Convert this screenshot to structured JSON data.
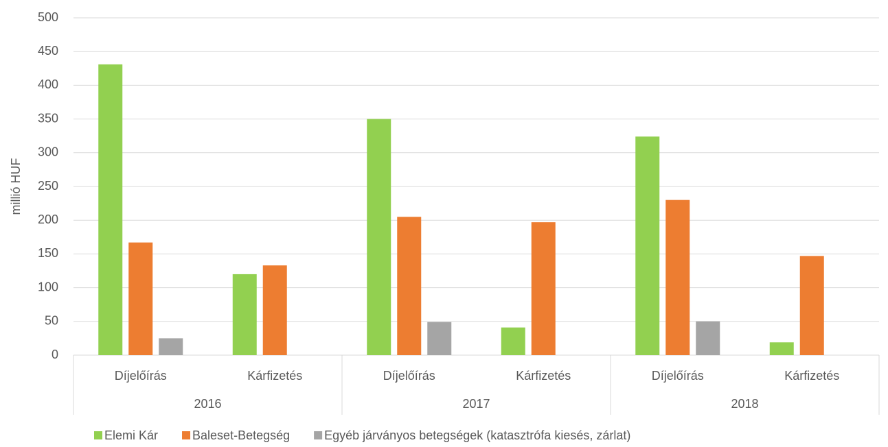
{
  "chart_data": {
    "type": "bar",
    "y_axis_label": "millió HUF",
    "categories": [
      "Díjelőírás",
      "Kárfizetés",
      "Díjelőírás",
      "Kárfizetés",
      "Díjelőírás",
      "Kárfizetés"
    ],
    "category_groups": [
      "2016",
      "2017",
      "2018"
    ],
    "series": [
      {
        "name": "Elemi Kár",
        "color": "#92d050",
        "values": [
          431,
          120,
          350,
          41,
          324,
          19
        ]
      },
      {
        "name": "Baleset-Betegség",
        "color": "#ed7d31",
        "values": [
          167,
          133,
          205,
          197,
          230,
          147
        ]
      },
      {
        "name": "Egyéb járványos betegségek (katasztrófa kiesés, zárlat)",
        "color": "#a5a5a5",
        "values": [
          25,
          null,
          49,
          null,
          50,
          null
        ]
      }
    ],
    "ylim": [
      0,
      500
    ],
    "yticks": [
      0,
      50,
      100,
      150,
      200,
      250,
      300,
      350,
      400,
      450,
      500
    ],
    "grid": true
  }
}
